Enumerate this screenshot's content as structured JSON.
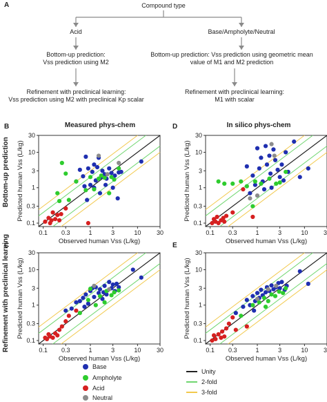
{
  "panel_a": {
    "letter": "A",
    "root": "Compound type",
    "left_branch": "Acid",
    "right_branch": "Base/Ampholyte/Neutral",
    "left_step1": "Bottom-up prediction:\nVss prediction using M2",
    "right_step1": "Bottom-up prediction: Vss prediction using geometric mean\nvalue of M1 and M2 prediction",
    "left_step2": "Refinement with preclinical learning:\nVss prediction using M2 with preclinical Kp scalar",
    "right_step2": "Refinement with preclinical learning:\nM1 with scalar"
  },
  "row_labels": [
    "Bottom-up prediction",
    "Refinement with preclinical learning"
  ],
  "column_titles": [
    "Measured phys-chem",
    "In silico phys-chem"
  ],
  "colors": {
    "Base": "#1f2fb0",
    "Ampholyte": "#2ecc2e",
    "Acid": "#d62020",
    "Neutral": "#8c8c8c",
    "Unity": "#222222",
    "2-fold": "#6fd66f",
    "3-fold": "#f2c94c"
  },
  "legend": {
    "points": [
      "Base",
      "Ampholyte",
      "Acid",
      "Neutral"
    ],
    "lines": [
      "Unity",
      "2-fold",
      "3-fold"
    ]
  },
  "chart_data": [
    {
      "type": "scatter",
      "panel": "B",
      "title": "Measured phys-chem",
      "xlabel": "Observed human Vss (L/kg)",
      "ylabel": "Predicted human Vss (L/kg)",
      "xscale": "log",
      "yscale": "log",
      "xlim": [
        0.08,
        30
      ],
      "ylim": [
        0.08,
        30
      ],
      "ticks": [
        "0.1",
        "0.3",
        "1",
        "3",
        "10",
        "30"
      ],
      "series": [
        {
          "name": "Base",
          "points": [
            [
              0.5,
              1.5
            ],
            [
              0.6,
              3.2
            ],
            [
              0.7,
              2.1
            ],
            [
              0.75,
              1.1
            ],
            [
              0.8,
              7.5
            ],
            [
              0.9,
              3.5
            ],
            [
              1.0,
              1.2
            ],
            [
              1.1,
              2.8
            ],
            [
              1.2,
              1.0
            ],
            [
              1.2,
              4.5
            ],
            [
              1.3,
              1.6
            ],
            [
              1.5,
              7.0
            ],
            [
              1.6,
              0.7
            ],
            [
              1.7,
              2.0
            ],
            [
              1.8,
              3.0
            ],
            [
              2.0,
              2.4
            ],
            [
              2.2,
              1.8
            ],
            [
              2.5,
              3.5
            ],
            [
              2.8,
              2.6
            ],
            [
              3.0,
              1.0
            ],
            [
              3.3,
              2.2
            ],
            [
              3.8,
              0.5
            ],
            [
              4.0,
              2.7
            ],
            [
              4.5,
              2.8
            ],
            [
              12.0,
              5.5
            ],
            [
              0.85,
              0.45
            ],
            [
              1.4,
              3.8
            ],
            [
              2.1,
              1.2
            ]
          ]
        },
        {
          "name": "Ampholyte",
          "points": [
            [
              0.2,
              0.7
            ],
            [
              0.22,
              0.42
            ],
            [
              0.25,
              5.0
            ],
            [
              0.3,
              2.5
            ],
            [
              0.35,
              0.45
            ],
            [
              0.5,
              1.5
            ],
            [
              0.8,
              0.85
            ],
            [
              1.0,
              2.0
            ],
            [
              1.2,
              0.9
            ],
            [
              1.5,
              1.8
            ],
            [
              1.7,
              2.2
            ],
            [
              2.0,
              1.9
            ],
            [
              2.5,
              0.7
            ],
            [
              2.8,
              2.0
            ],
            [
              3.2,
              1.7
            ],
            [
              4.0,
              3.5
            ]
          ]
        },
        {
          "name": "Acid",
          "points": [
            [
              0.11,
              0.11
            ],
            [
              0.13,
              0.14
            ],
            [
              0.14,
              0.1
            ],
            [
              0.15,
              0.12
            ],
            [
              0.16,
              0.2
            ],
            [
              0.18,
              0.13
            ],
            [
              0.2,
              0.17
            ],
            [
              0.22,
              0.12
            ],
            [
              0.24,
              0.18
            ],
            [
              0.3,
              0.26
            ],
            [
              0.9,
              0.1
            ]
          ]
        },
        {
          "name": "Neutral",
          "points": [
            [
              1.5,
              8.0
            ],
            [
              2.3,
              2.4
            ],
            [
              4.0,
              5.0
            ]
          ]
        }
      ]
    },
    {
      "type": "scatter",
      "panel": "D",
      "title": "In silico phys-chem",
      "xlabel": "Observed human Vss (L/kg)",
      "ylabel": "Predicted human Vss (L/kg)",
      "xscale": "log",
      "yscale": "log",
      "xlim": [
        0.08,
        30
      ],
      "ylim": [
        0.08,
        30
      ],
      "ticks": [
        "0.1",
        "0.3",
        "1",
        "3",
        "10",
        "30"
      ],
      "series": [
        {
          "name": "Base",
          "points": [
            [
              0.6,
              4.0
            ],
            [
              0.8,
              2.2
            ],
            [
              0.9,
              1.2
            ],
            [
              1.0,
              13.0
            ],
            [
              1.1,
              3.5
            ],
            [
              1.2,
              7.0
            ],
            [
              1.3,
              1.5
            ],
            [
              1.5,
              15.0
            ],
            [
              1.6,
              4.5
            ],
            [
              1.8,
              8.0
            ],
            [
              1.9,
              2.5
            ],
            [
              2.2,
              12.0
            ],
            [
              2.4,
              6.0
            ],
            [
              2.7,
              3.2
            ],
            [
              3.0,
              2.0
            ],
            [
              3.3,
              4.5
            ],
            [
              3.6,
              1.6
            ],
            [
              4.0,
              10.0
            ],
            [
              4.5,
              2.8
            ],
            [
              6.0,
              20.0
            ],
            [
              8.0,
              2.0
            ],
            [
              12.0,
              3.5
            ],
            [
              0.7,
              0.7
            ],
            [
              1.4,
              0.9
            ],
            [
              2.0,
              1.0
            ]
          ]
        },
        {
          "name": "Ampholyte",
          "points": [
            [
              0.15,
              1.5
            ],
            [
              0.2,
              1.3
            ],
            [
              0.3,
              1.3
            ],
            [
              0.45,
              1.5
            ],
            [
              0.6,
              1.1
            ],
            [
              0.9,
              1.5
            ],
            [
              1.2,
              1.3
            ],
            [
              1.8,
              1.8
            ],
            [
              2.5,
              1.3
            ],
            [
              3.0,
              1.4
            ],
            [
              4.0,
              2.8
            ],
            [
              0.8,
              0.3
            ]
          ]
        },
        {
          "name": "Acid",
          "points": [
            [
              0.11,
              0.1
            ],
            [
              0.12,
              0.13
            ],
            [
              0.13,
              0.11
            ],
            [
              0.14,
              0.15
            ],
            [
              0.15,
              0.1
            ],
            [
              0.17,
              0.12
            ],
            [
              0.19,
              0.14
            ],
            [
              0.2,
              0.11
            ],
            [
              0.22,
              0.16
            ],
            [
              0.3,
              0.2
            ],
            [
              0.5,
              0.9
            ],
            [
              0.8,
              0.15
            ]
          ]
        },
        {
          "name": "Neutral",
          "points": [
            [
              0.7,
              0.5
            ],
            [
              1.0,
              0.6
            ],
            [
              2.0,
              17.0
            ],
            [
              2.3,
              8.0
            ]
          ]
        }
      ]
    },
    {
      "type": "scatter",
      "panel": "C",
      "title": "",
      "xlabel": "Observed human Vss (L/kg)",
      "ylabel": "Predicted human Vss (L/kg)",
      "xscale": "log",
      "yscale": "log",
      "xlim": [
        0.08,
        30
      ],
      "ylim": [
        0.08,
        30
      ],
      "ticks": [
        "0.1",
        "0.3",
        "1",
        "3",
        "10",
        "30"
      ],
      "series": [
        {
          "name": "Base",
          "points": [
            [
              0.3,
              0.7
            ],
            [
              0.4,
              0.8
            ],
            [
              0.5,
              1.2
            ],
            [
              0.6,
              1.3
            ],
            [
              0.7,
              1.6
            ],
            [
              0.8,
              2.0
            ],
            [
              0.9,
              1.1
            ],
            [
              1.0,
              2.5
            ],
            [
              1.1,
              3.0
            ],
            [
              1.2,
              1.7
            ],
            [
              1.3,
              3.2
            ],
            [
              1.5,
              2.2
            ],
            [
              1.6,
              2.8
            ],
            [
              1.8,
              1.5
            ],
            [
              2.0,
              3.5
            ],
            [
              2.2,
              2.0
            ],
            [
              2.5,
              4.5
            ],
            [
              2.8,
              3.0
            ],
            [
              3.0,
              3.8
            ],
            [
              3.3,
              2.5
            ],
            [
              3.6,
              4.0
            ],
            [
              4.0,
              3.2
            ],
            [
              8.0,
              10.0
            ],
            [
              12.0,
              6.0
            ],
            [
              0.75,
              0.9
            ],
            [
              1.9,
              2.3
            ]
          ]
        },
        {
          "name": "Ampholyte",
          "points": [
            [
              0.6,
              0.6
            ],
            [
              0.9,
              1.4
            ],
            [
              1.3,
              1.0
            ],
            [
              1.6,
              1.8
            ],
            [
              2.0,
              1.2
            ],
            [
              2.2,
              2.5
            ],
            [
              2.8,
              1.9
            ],
            [
              3.2,
              2.3
            ],
            [
              4.0,
              2.6
            ],
            [
              1.0,
              2.9
            ]
          ]
        },
        {
          "name": "Acid",
          "points": [
            [
              0.11,
              0.12
            ],
            [
              0.12,
              0.11
            ],
            [
              0.13,
              0.15
            ],
            [
              0.14,
              0.13
            ],
            [
              0.16,
              0.12
            ],
            [
              0.18,
              0.16
            ],
            [
              0.2,
              0.14
            ],
            [
              0.22,
              0.2
            ],
            [
              0.25,
              0.25
            ],
            [
              0.3,
              0.35
            ],
            [
              0.35,
              0.5
            ],
            [
              0.5,
              0.7
            ]
          ]
        },
        {
          "name": "Neutral",
          "points": [
            [
              1.2,
              3.5
            ],
            [
              2.5,
              2.8
            ]
          ]
        }
      ]
    },
    {
      "type": "scatter",
      "panel": "E",
      "title": "",
      "xlabel": "Observed human Vss (L/kg)",
      "ylabel": "Predicted human Vss (L/kg)",
      "xscale": "log",
      "yscale": "log",
      "xlim": [
        0.08,
        30
      ],
      "ylim": [
        0.08,
        30
      ],
      "ticks": [
        "0.1",
        "0.3",
        "1",
        "3",
        "10",
        "30"
      ],
      "series": [
        {
          "name": "Base",
          "points": [
            [
              0.35,
              0.6
            ],
            [
              0.5,
              0.9
            ],
            [
              0.6,
              1.4
            ],
            [
              0.7,
              1.0
            ],
            [
              0.8,
              1.8
            ],
            [
              0.9,
              1.3
            ],
            [
              1.0,
              2.2
            ],
            [
              1.1,
              1.6
            ],
            [
              1.2,
              2.7
            ],
            [
              1.3,
              1.9
            ],
            [
              1.5,
              2.3
            ],
            [
              1.6,
              3.2
            ],
            [
              1.8,
              2.5
            ],
            [
              2.0,
              3.6
            ],
            [
              2.2,
              2.8
            ],
            [
              2.5,
              3.2
            ],
            [
              2.8,
              4.2
            ],
            [
              3.0,
              3.0
            ],
            [
              3.3,
              4.5
            ],
            [
              3.8,
              2.7
            ],
            [
              4.2,
              3.5
            ],
            [
              8.0,
              9.0
            ],
            [
              12.0,
              4.0
            ],
            [
              0.85,
              0.7
            ]
          ]
        },
        {
          "name": "Ampholyte",
          "points": [
            [
              0.45,
              0.5
            ],
            [
              0.8,
              1.0
            ],
            [
              1.1,
              1.2
            ],
            [
              1.4,
              1.6
            ],
            [
              1.7,
              1.3
            ],
            [
              2.0,
              2.0
            ],
            [
              2.4,
              1.8
            ],
            [
              2.9,
              2.4
            ],
            [
              3.5,
              2.2
            ],
            [
              4.0,
              3.0
            ],
            [
              1.5,
              0.9
            ]
          ]
        },
        {
          "name": "Acid",
          "points": [
            [
              0.11,
              0.1
            ],
            [
              0.12,
              0.14
            ],
            [
              0.13,
              0.11
            ],
            [
              0.15,
              0.15
            ],
            [
              0.17,
              0.12
            ],
            [
              0.18,
              0.18
            ],
            [
              0.2,
              0.13
            ],
            [
              0.22,
              0.22
            ],
            [
              0.25,
              0.3
            ],
            [
              0.3,
              0.45
            ],
            [
              0.35,
              0.2
            ],
            [
              0.6,
              0.25
            ]
          ]
        },
        {
          "name": "Neutral",
          "points": [
            [
              1.0,
              1.5
            ],
            [
              2.5,
              3.5
            ],
            [
              1.7,
              2.8
            ]
          ]
        }
      ]
    }
  ]
}
